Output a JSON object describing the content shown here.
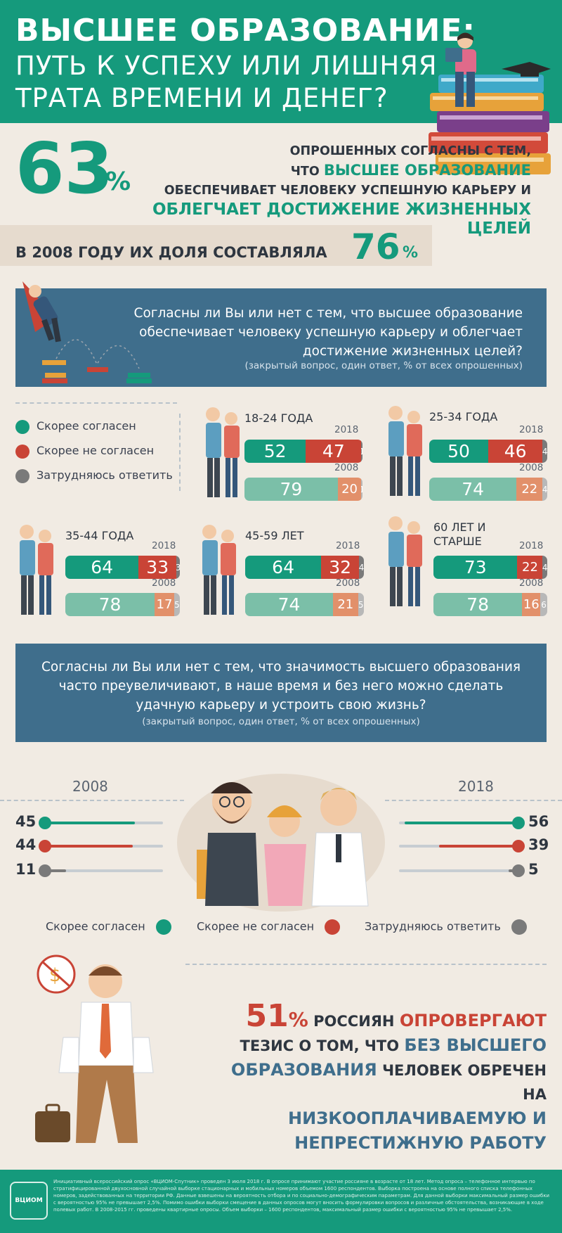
{
  "header": {
    "title_line1": "ВЫСШЕЕ ОБРАЗОВАНИЕ:",
    "title_line2": "ПУТЬ К УСПЕХУ ИЛИ ЛИШНЯЯ",
    "title_line3": "ТРАТА ВРЕМЕНИ И ДЕНЕГ?"
  },
  "stat": {
    "value": "63",
    "pct": "%",
    "line1": "опрошенных согласны с тем,",
    "line2_a": "что ",
    "line2_hl": "высшее образование",
    "line3": "обеспечивает человеку успешную карьеру и",
    "line4_hl": "облегчает достижение жизненных",
    "line5_hl": "целей",
    "prev_text": "В 2008 ГОДУ ИХ ДОЛЯ СОСТАВЛЯЛА",
    "prev_value": "76",
    "prev_pct": "%"
  },
  "q1": {
    "line1": "Согласны ли Вы или нет с тем, что высшее образование",
    "line2": "обеспечивает человеку успешную карьеру и облегчает",
    "line3": "достижение жизненных целей?",
    "note": "(закрытый вопрос, один ответ, % от всех опрошенных)"
  },
  "legend": {
    "agree": "Скорее согласен",
    "disagree": "Скорее не согласен",
    "unsure": "Затрудняюсь ответить"
  },
  "colors": {
    "agree_2018": "#159a7c",
    "disagree_2018": "#c94436",
    "unsure_2018": "#7a7a7a",
    "agree_2008": "#7bbfa8",
    "disagree_2008": "#e2906a",
    "unsure_2008": "#b8b8b8",
    "blue": "#3f6e8c",
    "header": "#159a7c"
  },
  "chart_data": [
    {
      "type": "bar",
      "title": "Согласны ли Вы или нет с тем, что высшее образование обеспечивает человеку успешную карьеру и облегчает достижение жизненных целей?",
      "unit": "%",
      "series_names": [
        "Скорее согласен",
        "Скорее не согласен",
        "Затрудняюсь ответить"
      ],
      "groups": [
        {
          "label": "18-24 ГОДА",
          "y2018": [
            52,
            47,
            1
          ],
          "y2008": [
            79,
            20,
            1
          ]
        },
        {
          "label": "25-34 ГОДА",
          "y2018": [
            50,
            46,
            4
          ],
          "y2008": [
            74,
            22,
            4
          ]
        },
        {
          "label": "35-44 ГОДА",
          "y2018": [
            64,
            33,
            3
          ],
          "y2008": [
            78,
            17,
            5
          ]
        },
        {
          "label": "45-59 ЛЕТ",
          "y2018": [
            64,
            32,
            4
          ],
          "y2008": [
            74,
            21,
            5
          ]
        },
        {
          "label": "60 ЛЕТ И СТАРШЕ",
          "y2018": [
            73,
            22,
            4
          ],
          "y2008": [
            78,
            16,
            6
          ]
        }
      ],
      "year_labels": [
        "2018",
        "2008"
      ]
    },
    {
      "type": "bar",
      "title": "Согласны ли Вы или нет с тем, что значимость высшего образования часто преувеличивают, в наше время и без него можно сделать удачную карьеру и устроить свою жизнь?",
      "unit": "%",
      "categories": [
        "Скорее согласен",
        "Скорее не согласен",
        "Затрудняюсь ответить"
      ],
      "series": [
        {
          "name": "2008",
          "values": [
            45,
            44,
            11
          ]
        },
        {
          "name": "2018",
          "values": [
            56,
            39,
            5
          ]
        }
      ]
    }
  ],
  "q2": {
    "line1": "Согласны ли Вы или нет с тем, что значимость высшего образования",
    "line2": "часто преувеличивают, в наше время и без него можно сделать",
    "line3": "удачную карьеру и устроить свою жизнь?",
    "note": "(закрытый вопрос, один ответ, % от всех опрошенных)"
  },
  "final": {
    "num": "51",
    "pct": "%",
    "w1": " россиян ",
    "w2": "опровергают",
    "w3": "тезис о том, что ",
    "w4": "без высшего",
    "w5": "образования",
    "w6": " человек обречен на",
    "w7": "низкооплачиваемую и",
    "w8": "непрестижную работу"
  },
  "footer": {
    "logo_text": "ВЦИОМ",
    "note": "Инициативный всероссийский опрос «ВЦИОМ-Спутник» проведен 3 июля 2018 г. В опросе принимают участие россияне в возрасте от 18 лет. Метод опроса – телефонное интервью по стратифицированной двухосновной случайной выборке стационарных и мобильных номеров объемом 1600 респондентов. Выборка построена на основе полного списка телефонных номеров, задействованных на территории РФ. Данные взвешены на вероятность отбора и по социально-демографическим параметрам. Для данной выборки максимальный размер ошибки с вероятностью 95% не превышает 2,5%. Помимо ошибки выборки смещение в данных опросов могут вносить формулировки вопросов и различные обстоятельства, возникающие в ходе полевых работ. В 2008-2015 гг. проведены квартирные опросы. Объем выборки – 1600 респондентов, максимальный размер ошибки с вероятностью 95% не превышает 2,5%."
  }
}
